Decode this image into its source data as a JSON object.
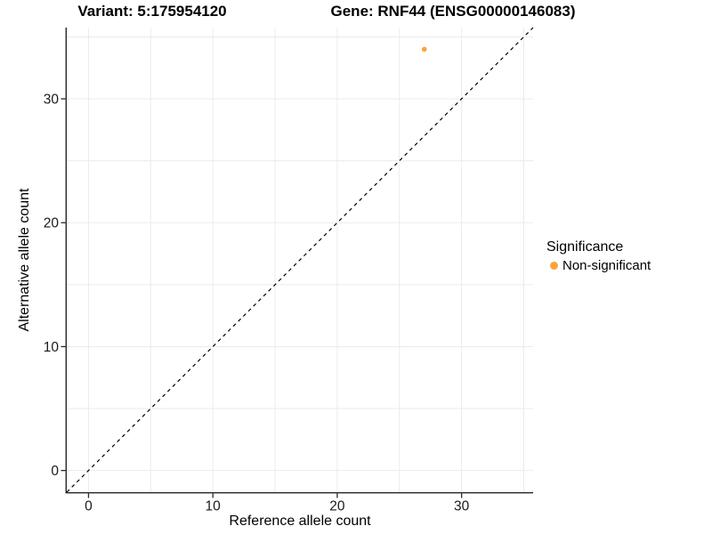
{
  "chart_data": {
    "type": "scatter",
    "title_left": "Variant: 5:175954120",
    "title_right": "Gene: RNF44 (ENSG00000146083)",
    "xlabel": "Reference allele count",
    "ylabel": "Alternative allele count",
    "xlim": [
      -1.75,
      35.75
    ],
    "ylim": [
      -1.75,
      35.75
    ],
    "x_ticks": [
      0,
      10,
      20,
      30
    ],
    "y_ticks": [
      0,
      10,
      20,
      30
    ],
    "gridline_positions": [
      0,
      5,
      10,
      15,
      20,
      25,
      30,
      35
    ],
    "grid": "on",
    "series": [
      {
        "name": "Non-significant",
        "color": "#FAA43A",
        "points": [
          {
            "x": 27,
            "y": 34
          }
        ]
      }
    ],
    "reference_line": {
      "slope": 1,
      "intercept": 0,
      "style": "dashed",
      "color": "#000000"
    },
    "legend": {
      "title": "Significance",
      "position": "right",
      "entries": [
        {
          "label": "Non-significant",
          "color": "#FAA43A",
          "marker": "circle"
        }
      ]
    }
  },
  "colors": {
    "background": "#FFFFFF",
    "gridline": "#EBEBEB",
    "axis": "#262626",
    "tick_label": "#1A1A1A",
    "point": "#FAA43A"
  }
}
